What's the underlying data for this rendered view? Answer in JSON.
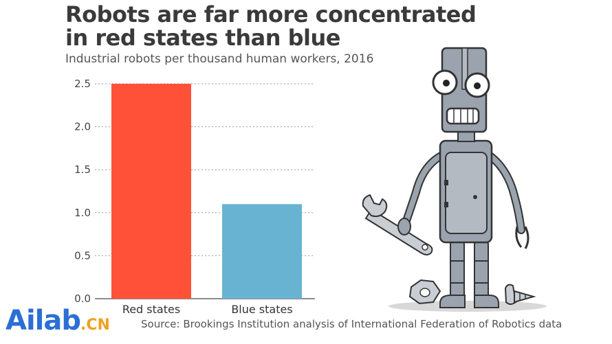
{
  "title": "Robots are far more concentrated in red states than blue",
  "subtitle": "Industrial robots per thousand human workers, 2016",
  "source": "Source: Brookings Institution analysis of International Federation of Robotics data",
  "logo": {
    "main": "Ailab",
    "suffix": ".CN"
  },
  "colors": {
    "red": "#ff5138",
    "blue": "#69b3d2",
    "robot": "#9aa3ae"
  },
  "chart_data": {
    "type": "bar",
    "categories": [
      "Red states",
      "Blue states"
    ],
    "values": [
      2.5,
      1.1
    ],
    "yticks": [
      "0.0",
      "0.5",
      "1.0",
      "1.5",
      "2.0",
      "2.5"
    ],
    "ylim": [
      0,
      2.5
    ],
    "grid": true,
    "xlabel": "",
    "ylabel": ""
  }
}
